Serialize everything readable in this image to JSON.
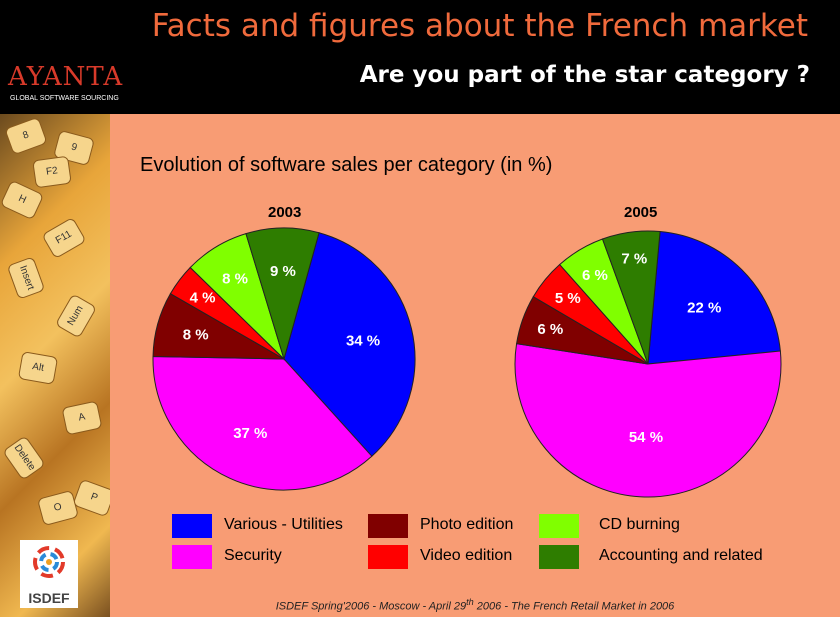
{
  "header": {
    "title": "Facts and figures about the French market",
    "subtitle": "Are you part of the star category ?"
  },
  "logo": {
    "name": "AYANTA",
    "tagline": "GLOBAL SOFTWARE SOURCING"
  },
  "isdef_logo": {
    "label": "ISDEF"
  },
  "footer": {
    "pre": "ISDEF Spring'2006 - Moscow - April 29",
    "sup": "th",
    "post": " 2006 - The French Retail Market in 2006"
  },
  "colors": {
    "Various - Utilities": "#0000ff",
    "Photo edition": "#800000",
    "CD burning": "#80ff00",
    "Security": "#ff00ff",
    "Video edition": "#ff0000",
    "Accounting and related": "#2e7d00"
  },
  "chart_data": {
    "type": "pie",
    "title": "Evolution of software sales per category (in %)",
    "unit": "%",
    "legend_placement": "bottom",
    "legend": [
      "Various - Utilities",
      "Security",
      "Photo edition",
      "Video edition",
      "CD burning",
      "Accounting and related"
    ],
    "pies": [
      {
        "title": "2003",
        "slices": [
          {
            "label": "Various - Utilities",
            "value": 34,
            "text": "34 %"
          },
          {
            "label": "Security",
            "value": 37,
            "text": "37 %"
          },
          {
            "label": "Photo edition",
            "value": 8,
            "text": "8 %"
          },
          {
            "label": "Video edition",
            "value": 4,
            "text": "4 %"
          },
          {
            "label": "CD burning",
            "value": 8,
            "text": "8 %"
          },
          {
            "label": "Accounting and related",
            "value": 9,
            "text": "9 %"
          }
        ]
      },
      {
        "title": "2005",
        "slices": [
          {
            "label": "Various - Utilities",
            "value": 22,
            "text": "22 %"
          },
          {
            "label": "Security",
            "value": 54,
            "text": "54 %"
          },
          {
            "label": "Photo edition",
            "value": 6,
            "text": "6 %"
          },
          {
            "label": "Video edition",
            "value": 5,
            "text": "5 %"
          },
          {
            "label": "CD burning",
            "value": 6,
            "text": "6 %"
          },
          {
            "label": "Accounting and related",
            "value": 7,
            "text": "7 %"
          }
        ]
      }
    ]
  }
}
